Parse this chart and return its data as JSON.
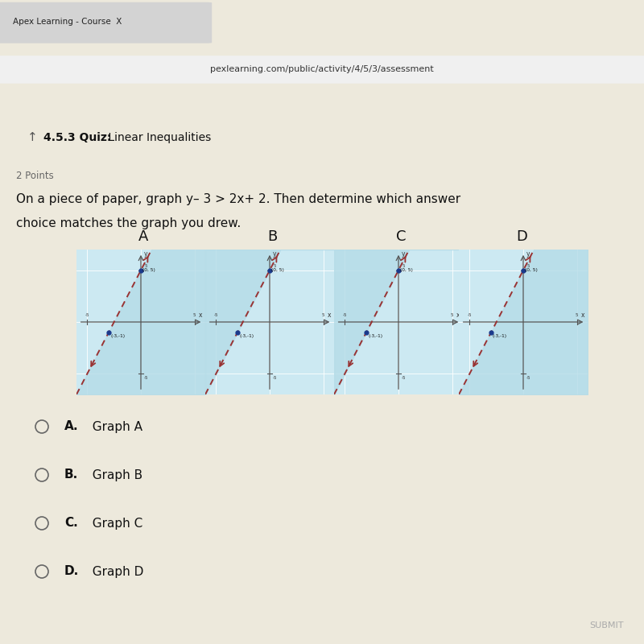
{
  "tab_text": "Apex Learning - Course  X",
  "url_text": "pexlearning.com/public/activity/4/5/3/assessment",
  "quiz_title_bold": "4.5.3 Quiz:",
  "quiz_title_rest": " Linear Inequalities",
  "points_label": "2 Points",
  "question_line1": "On a piece of paper, graph y– 3 > 2x+ 2. Then determine which answer",
  "question_line2": "choice matches the graph you drew.",
  "graph_labels": [
    "A",
    "B",
    "C",
    "D"
  ],
  "shade_regions": [
    "lower_left",
    "upper_left",
    "upper_right",
    "lower_right"
  ],
  "point_high": [
    0,
    5
  ],
  "point_low": [
    -3,
    -1
  ],
  "slope": 2,
  "intercept": 5,
  "xmin": -6,
  "xmax": 6,
  "ymin": -7,
  "ymax": 7,
  "shade_color": "#b5dce8",
  "line_color": "#993333",
  "dot_color": "#1a3a8c",
  "choices_bold": [
    "A.",
    "B.",
    "C.",
    "D."
  ],
  "choice_labels": [
    "  Graph A",
    "  Graph B",
    "  Graph C",
    "  Graph D"
  ],
  "content_bg": "#ede9dc",
  "browser_dark": "#2d3252",
  "tab_color": "#d3d3d3",
  "graph_bg": "#cce9f2",
  "url_bar_inner": "#f0f0f0",
  "url_bar_outer": "#b8b8b8"
}
